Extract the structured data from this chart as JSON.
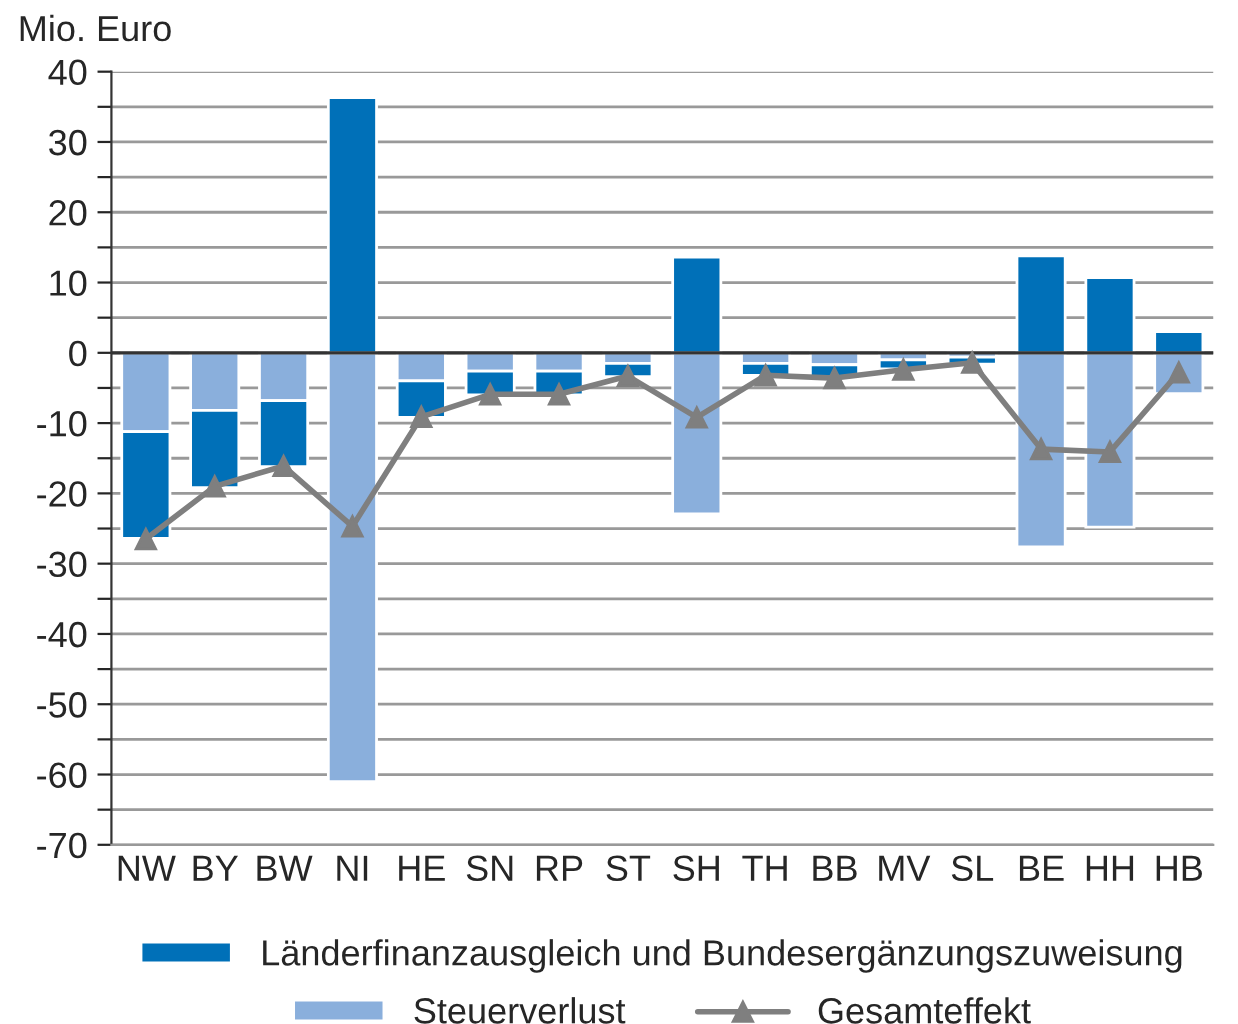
{
  "chart_data": {
    "type": "bar",
    "stacked": true,
    "ylabel": "Mio. Euro",
    "categories": [
      "NW",
      "BY",
      "BW",
      "NI",
      "HE",
      "SN",
      "RP",
      "ST",
      "SH",
      "TH",
      "BB",
      "MV",
      "SL",
      "BE",
      "HH",
      "HB"
    ],
    "series": [
      {
        "name": "Steuerverlust",
        "color": "#8aafdc",
        "values": [
          -11.2,
          -8.2,
          -6.8,
          -61,
          -4,
          -2.6,
          -2.6,
          -1.5,
          -22.9,
          -1.5,
          -1.7,
          -1,
          -0.6,
          -27.6,
          -24.8,
          -5.8
        ]
      },
      {
        "name": "Länderfinanzausgleich und Bundesergänzungszuweisung",
        "color": "#0070b8",
        "values": [
          -15.2,
          -11,
          -9.4,
          36.3,
          -5.2,
          -3.4,
          -3.4,
          -1.9,
          13.6,
          -1.7,
          -1.7,
          -1.3,
          -1,
          13.8,
          10.7,
          3
        ]
      },
      {
        "name": "Gesamteffekt",
        "type": "line",
        "color": "#7f7f7f",
        "marker": "triangle",
        "line_style": "solid",
        "values": [
          -26.5,
          -19,
          -16.1,
          -24.7,
          -9.1,
          -5.9,
          -5.9,
          -3.3,
          -9.2,
          -3.2,
          -3.6,
          -2.4,
          -1.4,
          -13.7,
          -14.1,
          -2.8
        ]
      }
    ],
    "ylim": [
      -70,
      40
    ],
    "yticks": [
      -70,
      {
        "value": -65,
        "label": null
      },
      -60,
      {
        "value": -55,
        "label": null
      },
      -50,
      {
        "value": -45,
        "label": null
      },
      -40,
      {
        "value": -35,
        "label": null
      },
      -30,
      {
        "value": -25,
        "label": null
      },
      -20,
      {
        "value": -15,
        "label": null
      },
      -10,
      {
        "value": -5,
        "label": null
      },
      0,
      {
        "value": 5,
        "label": null
      },
      10,
      {
        "value": 15,
        "label": null
      },
      20,
      {
        "value": 25,
        "label": null
      },
      30,
      {
        "value": 35,
        "label": null
      },
      40
    ],
    "grid": "y",
    "legend": "bottom"
  }
}
